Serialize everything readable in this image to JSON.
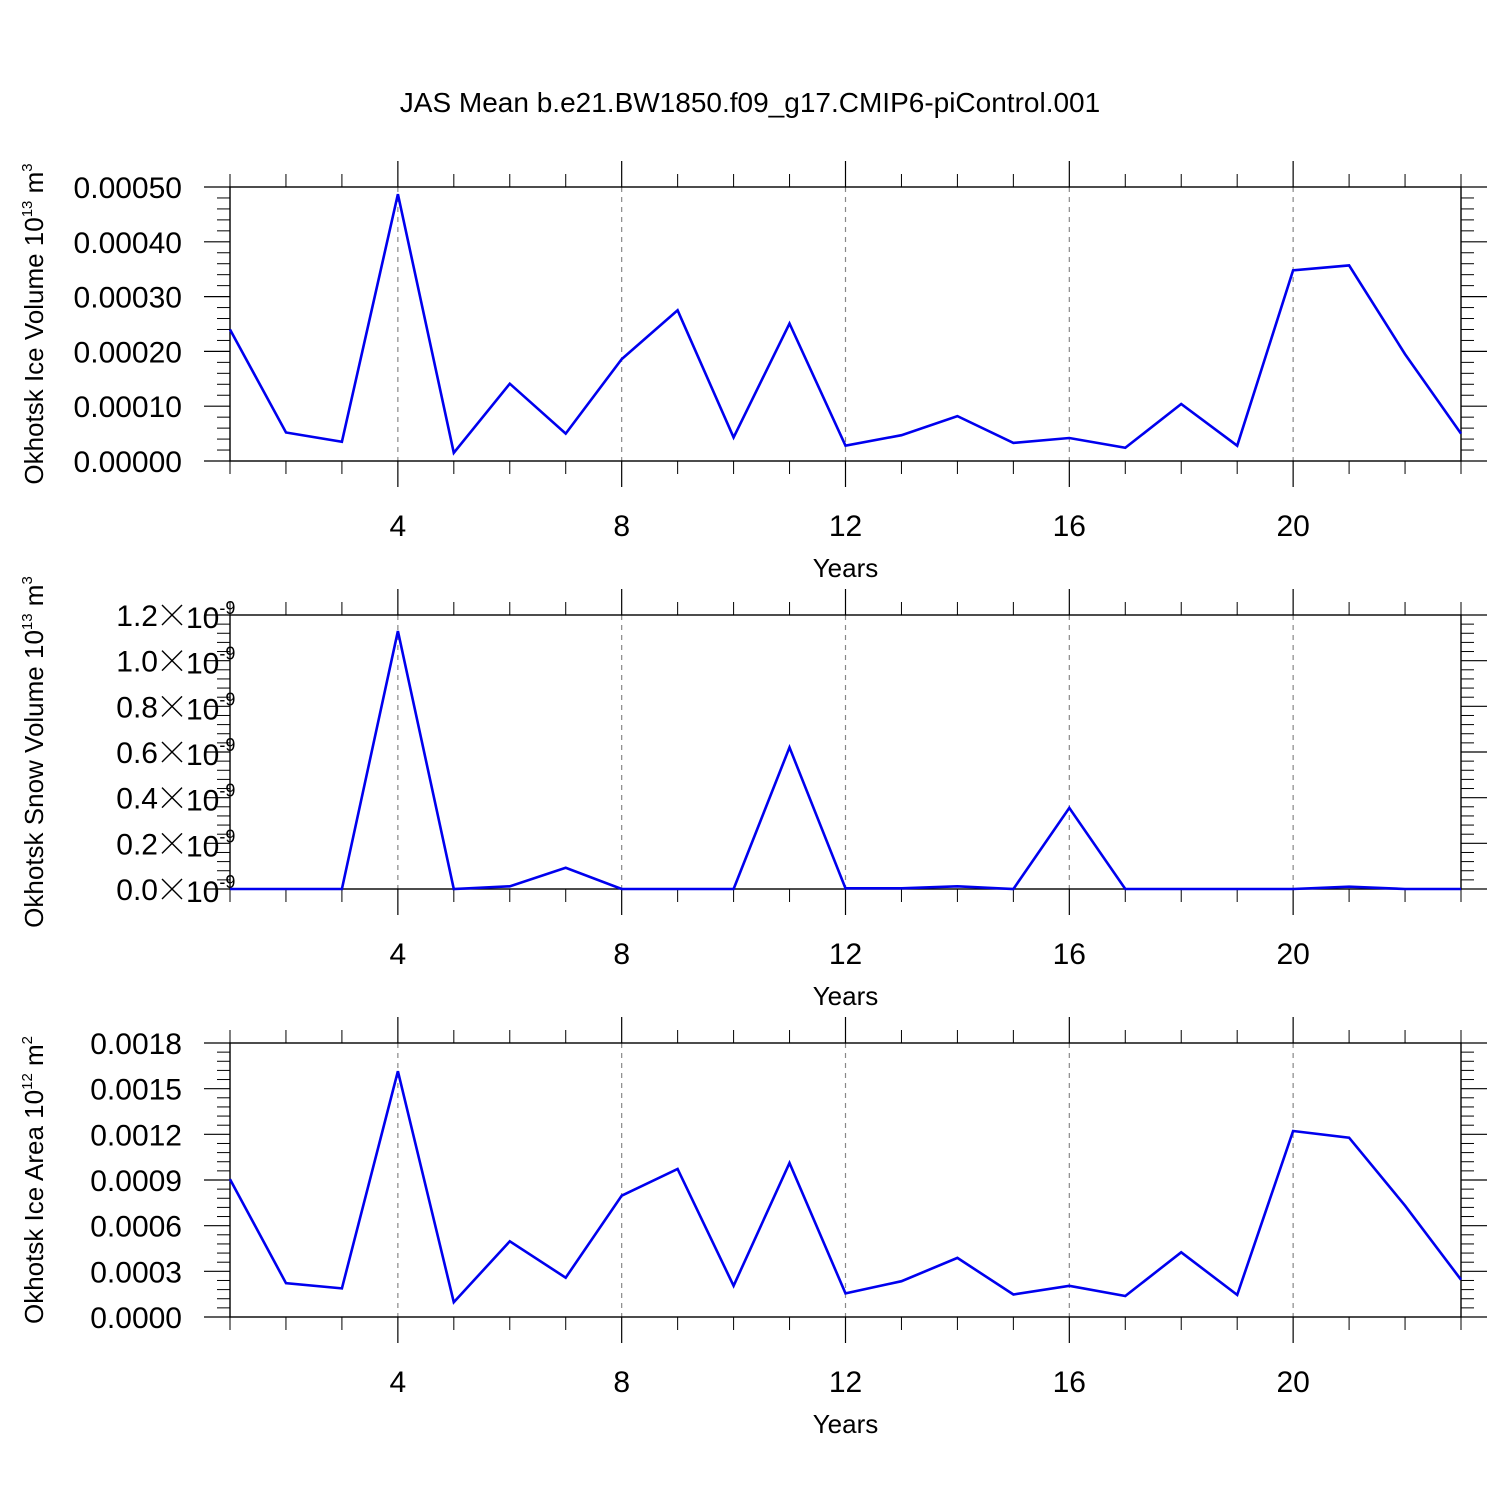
{
  "title": "JAS Mean b.e21.BW1850.f09_g17.CMIP6-piControl.001",
  "line_color": "#0000ee",
  "chart_data": [
    {
      "type": "line",
      "ylabel": {
        "text": "Okhotsk Ice Volume 10",
        "sup": "13",
        "unit": " m",
        "unit_sup": "3"
      },
      "xlabel": "Years",
      "xlim": [
        1,
        23
      ],
      "ylim": [
        0,
        0.0005
      ],
      "xticks": [
        4,
        8,
        12,
        16,
        20
      ],
      "xtick_labels": [
        "4",
        "8",
        "12",
        "16",
        "20"
      ],
      "grid_x": true,
      "yticks": [
        0,
        0.0001,
        0.0002,
        0.0003,
        0.0004,
        0.0005
      ],
      "ytick_labels": [
        "0.00000",
        "0.00010",
        "0.00020",
        "0.00030",
        "0.00040",
        "0.00050"
      ],
      "x": [
        1,
        2,
        3,
        4,
        5,
        6,
        7,
        8,
        9,
        10,
        11,
        12,
        13,
        14,
        15,
        16,
        17,
        18,
        19,
        20,
        21,
        22,
        23
      ],
      "values": [
        0.00024,
        5.2e-05,
        3.5e-05,
        0.000487,
        1.5e-05,
        0.000141,
        5e-05,
        0.000186,
        0.000275,
        4.3e-05,
        0.000251,
        2.8e-05,
        4.7e-05,
        8.2e-05,
        3.3e-05,
        4.2e-05,
        2.4e-05,
        0.000104,
        2.8e-05,
        0.000348,
        0.000357,
        0.000195,
        5e-05
      ]
    },
    {
      "type": "line",
      "ylabel": {
        "text": "Okhotsk Snow Volume 10",
        "sup": "13",
        "unit": " m",
        "unit_sup": "3"
      },
      "xlabel": "Years",
      "xlim": [
        1,
        23
      ],
      "ylim": [
        0,
        1.2e-09
      ],
      "xticks": [
        4,
        8,
        12,
        16,
        20
      ],
      "xtick_labels": [
        "4",
        "8",
        "12",
        "16",
        "20"
      ],
      "grid_x": true,
      "yticks": [
        0,
        2e-10,
        4e-10,
        6e-10,
        8e-10,
        1e-09,
        1.2e-09
      ],
      "ytick_labels": [
        {
          "mant": "0.0",
          "exp": "-9"
        },
        {
          "mant": "0.2",
          "exp": "-9"
        },
        {
          "mant": "0.4",
          "exp": "-9"
        },
        {
          "mant": "0.6",
          "exp": "-9"
        },
        {
          "mant": "0.8",
          "exp": "-9"
        },
        {
          "mant": "1.0",
          "exp": "-9"
        },
        {
          "mant": "1.2",
          "exp": "-9"
        }
      ],
      "x": [
        1,
        2,
        3,
        4,
        5,
        6,
        7,
        8,
        9,
        10,
        11,
        12,
        13,
        14,
        15,
        16,
        17,
        18,
        19,
        20,
        21,
        22,
        23
      ],
      "values": [
        0,
        0,
        0,
        1.13e-09,
        0,
        1.2e-11,
        9.3e-11,
        0,
        0,
        0,
        6.2e-10,
        3e-12,
        3e-12,
        1.2e-11,
        0,
        3.55e-10,
        0,
        0,
        0,
        0,
        1e-11,
        0,
        0
      ]
    },
    {
      "type": "line",
      "ylabel": {
        "text": "Okhotsk Ice Area 10",
        "sup": "12",
        "unit": " m",
        "unit_sup": "2"
      },
      "xlabel": "Years",
      "xlim": [
        1,
        23
      ],
      "ylim": [
        0,
        0.0018
      ],
      "xticks": [
        4,
        8,
        12,
        16,
        20
      ],
      "xtick_labels": [
        "4",
        "8",
        "12",
        "16",
        "20"
      ],
      "grid_x": true,
      "yticks": [
        0,
        0.0003,
        0.0006,
        0.0009,
        0.0012,
        0.0015,
        0.0018
      ],
      "ytick_labels": [
        "0.0000",
        "0.0003",
        "0.0006",
        "0.0009",
        "0.0012",
        "0.0015",
        "0.0018"
      ],
      "x": [
        1,
        2,
        3,
        4,
        5,
        6,
        7,
        8,
        9,
        10,
        11,
        12,
        13,
        14,
        15,
        16,
        17,
        18,
        19,
        20,
        21,
        22,
        23
      ],
      "values": [
        0.000905,
        0.000222,
        0.000188,
        0.001615,
        9.7e-05,
        0.000497,
        0.000258,
        0.000797,
        0.000972,
        0.000205,
        0.001012,
        0.000155,
        0.000235,
        0.000388,
        0.000148,
        0.000205,
        0.000138,
        0.000425,
        0.000145,
        0.001222,
        0.001178,
        0.000732,
        0.000245
      ]
    }
  ]
}
